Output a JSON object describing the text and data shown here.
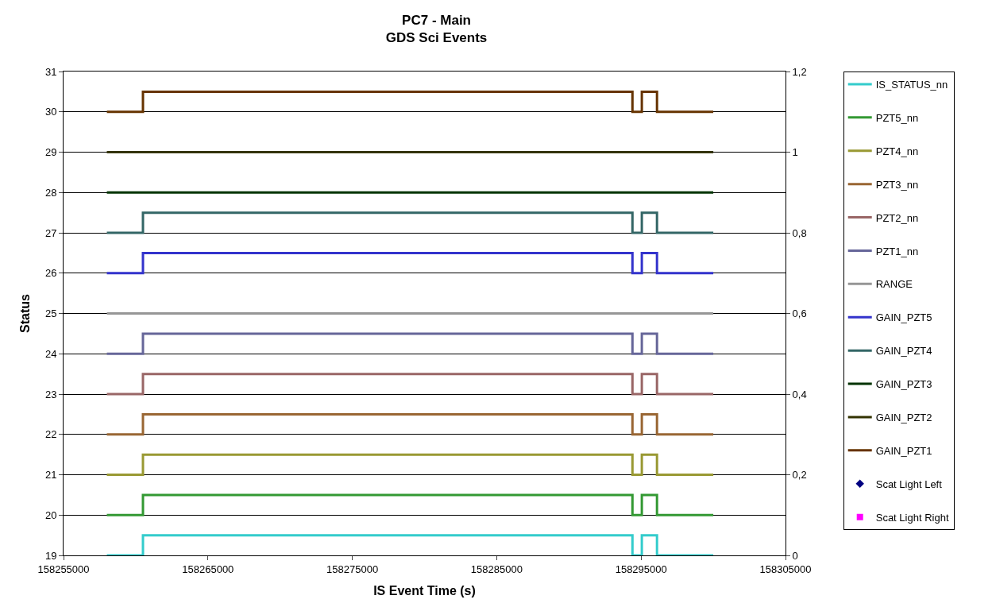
{
  "chart_data": {
    "type": "step",
    "title": "PC7 - Main\nGDS Sci Events",
    "xlabel": "IS Event Time (s)",
    "ylabel": "Status",
    "x": [
      158258000,
      158260500,
      158294400,
      158295050,
      158296100,
      158300000
    ],
    "series": [
      {
        "name": "IS_STATUS_nn",
        "color": "#33cccc",
        "values": [
          19,
          19.5,
          19,
          19.5,
          19,
          19
        ]
      },
      {
        "name": "PZT5_nn",
        "color": "#339933",
        "values": [
          20,
          20.5,
          20,
          20.5,
          20,
          20
        ]
      },
      {
        "name": "PZT4_nn",
        "color": "#999933",
        "values": [
          21,
          21.5,
          21,
          21.5,
          21,
          21
        ]
      },
      {
        "name": "PZT3_nn",
        "color": "#996633",
        "values": [
          22,
          22.5,
          22,
          22.5,
          22,
          22
        ]
      },
      {
        "name": "PZT2_nn",
        "color": "#996666",
        "values": [
          23,
          23.5,
          23,
          23.5,
          23,
          23
        ]
      },
      {
        "name": "PZT1_nn",
        "color": "#666699",
        "values": [
          24,
          24.5,
          24,
          24.5,
          24,
          24
        ]
      },
      {
        "name": "RANGE",
        "color": "#969696",
        "values": [
          25,
          25,
          25,
          25,
          25,
          25
        ]
      },
      {
        "name": "GAIN_PZT5",
        "color": "#3333cc",
        "values": [
          26,
          26.5,
          26,
          26.5,
          26,
          26
        ]
      },
      {
        "name": "GAIN_PZT4",
        "color": "#336666",
        "values": [
          27,
          27.5,
          27,
          27.5,
          27,
          27
        ]
      },
      {
        "name": "GAIN_PZT3",
        "color": "#003300",
        "values": [
          28,
          28,
          28,
          28,
          28,
          28
        ]
      },
      {
        "name": "GAIN_PZT2",
        "color": "#333300",
        "values": [
          29,
          29,
          29,
          29,
          29,
          29
        ]
      },
      {
        "name": "GAIN_PZT1",
        "color": "#663300",
        "values": [
          30,
          30.5,
          30,
          30.5,
          30,
          30
        ]
      },
      {
        "name": "Scat Light Left",
        "color": "#000080",
        "type": "scatter",
        "marker": "diamond",
        "axis": "y2",
        "values": [
          null,
          null,
          null,
          null,
          null,
          null
        ]
      },
      {
        "name": "Scat Light Right",
        "color": "#ff00ff",
        "type": "scatter",
        "marker": "square",
        "axis": "y2",
        "values": [
          null,
          null,
          null,
          null,
          null,
          null
        ]
      }
    ],
    "xlim": [
      158255000,
      158305000
    ],
    "xticks": [
      158255000,
      158265000,
      158275000,
      158285000,
      158295000,
      158305000
    ],
    "ylim": [
      19,
      31
    ],
    "yticks": [
      19,
      20,
      21,
      22,
      23,
      24,
      25,
      26,
      27,
      28,
      29,
      30,
      31
    ],
    "y2lim": [
      0,
      1.2
    ],
    "y2ticks": [
      0,
      {
        "value": 0.2,
        "label": "0,2"
      },
      {
        "value": 0.4,
        "label": "0,4"
      },
      {
        "value": 0.6,
        "label": "0,6"
      },
      {
        "value": 0.8,
        "label": "0,8"
      },
      1,
      {
        "value": 1.2,
        "label": "1,2"
      }
    ],
    "grid": "y",
    "legend": "right",
    "marker": "none",
    "line_style": "solid"
  }
}
